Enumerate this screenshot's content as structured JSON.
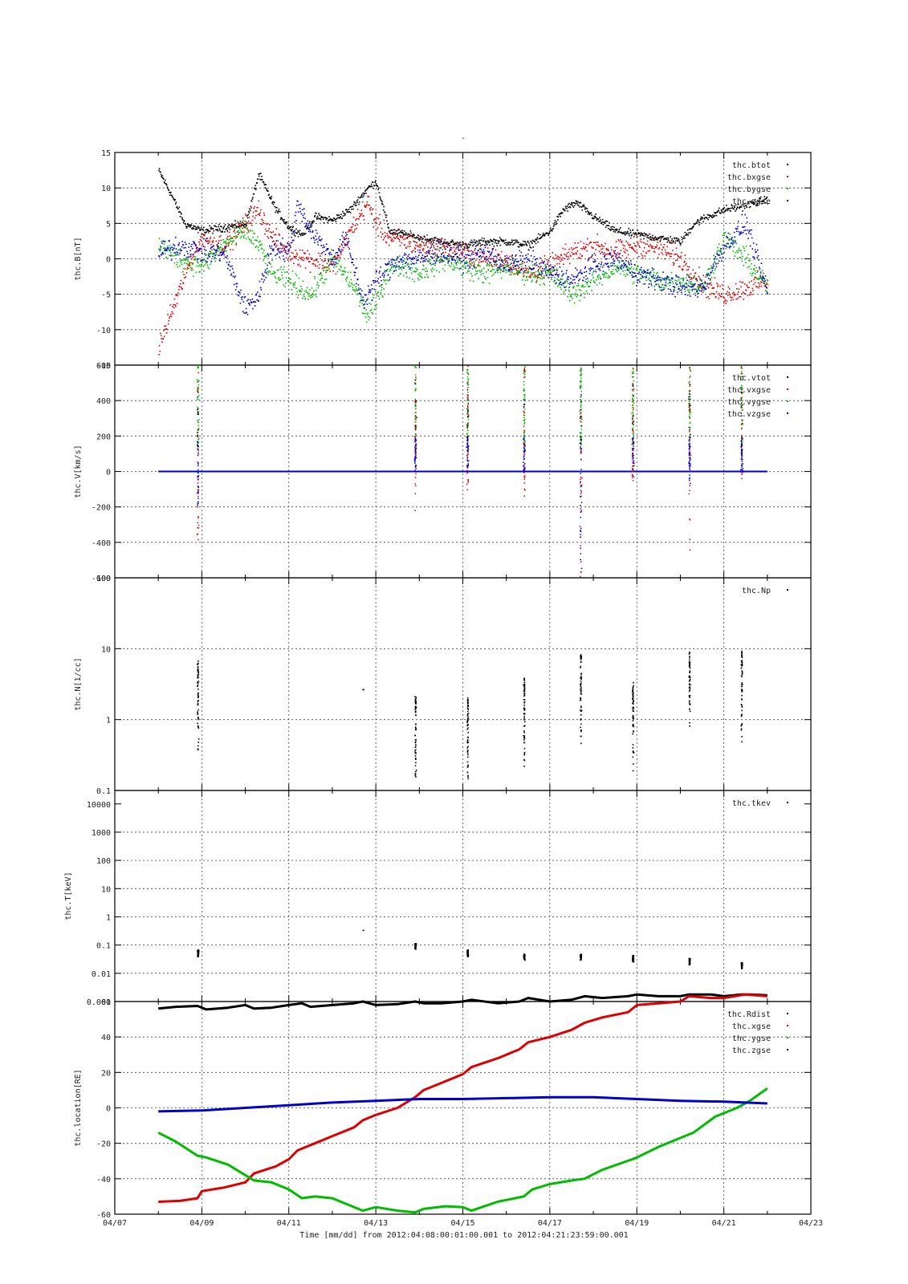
{
  "figure": {
    "top_mark": "-",
    "x_axis": {
      "tick_labels": [
        "04/07",
        "04/09",
        "04/11",
        "04/13",
        "04/15",
        "04/17",
        "04/19",
        "04/21",
        "04/23"
      ],
      "label": "Time [mm/dd]  from 2012:04:08:00:01:00.001  to  2012:04:21:23:59:00.001",
      "range": [
        "04/07",
        "04/23"
      ]
    }
  },
  "colors": {
    "black": "#000000",
    "red": "#dd0000",
    "green": "#00bb00",
    "blue": "#0000cc"
  },
  "chart_data": [
    {
      "type": "scatter",
      "ylabel": "thc.B[nT]",
      "ylim": [
        -15,
        15
      ],
      "yscale": "linear",
      "yticks": [
        -15,
        -10,
        -5,
        0,
        5,
        10,
        15
      ],
      "ytick_labels": [
        "-15",
        "-10",
        "-5",
        "0",
        "5",
        "10",
        "15"
      ],
      "grid": true,
      "legend_position": "top-right",
      "series": [
        {
          "name": "thc.btot",
          "color": "black",
          "x": [
            8.0,
            8.3,
            8.6,
            9.0,
            9.5,
            10.0,
            10.3,
            10.7,
            11.0,
            11.3,
            11.6,
            12.0,
            12.4,
            12.8,
            13.0,
            13.3,
            13.7,
            14.0,
            14.5,
            15.0,
            15.5,
            16.0,
            16.5,
            17.0,
            17.3,
            17.6,
            18.0,
            18.5,
            19.0,
            19.5,
            20.0,
            20.3,
            20.6,
            21.0,
            21.4,
            21.7,
            22.0
          ],
          "y": [
            12.5,
            9,
            5,
            4,
            4.5,
            5,
            12,
            7,
            4.5,
            3.5,
            6,
            5.5,
            7,
            10,
            11,
            4,
            3.5,
            3,
            2.5,
            2,
            2.5,
            2.5,
            2,
            4,
            7,
            8,
            6,
            4,
            3.5,
            3,
            2.5,
            5,
            6,
            7,
            7.5,
            8,
            8.5
          ]
        },
        {
          "name": "thc.bxgse",
          "color": "red",
          "x": [
            8.0,
            8.2,
            8.5,
            8.8,
            9.0,
            9.5,
            10.0,
            10.3,
            10.6,
            11.0,
            11.5,
            12.0,
            12.5,
            12.8,
            13.0,
            13.3,
            13.7,
            14.0,
            14.5,
            15.0,
            15.5,
            16.0,
            16.5,
            17.0,
            17.5,
            18.0,
            18.5,
            19.0,
            19.5,
            20.0,
            20.3,
            20.6,
            21.0,
            21.5,
            22.0
          ],
          "y": [
            -12.5,
            -9,
            -4,
            1,
            3,
            2,
            5,
            7,
            3,
            1,
            0,
            -1,
            5,
            8,
            5,
            3,
            2.5,
            2,
            1.5,
            1,
            0,
            0,
            -2,
            -1,
            1,
            2,
            1,
            2,
            1.5,
            0,
            -2,
            -4,
            -5,
            -4,
            -3
          ]
        },
        {
          "name": "thc.bygse",
          "color": "green",
          "x": [
            8.0,
            8.5,
            9.0,
            9.5,
            10.0,
            10.3,
            10.6,
            11.0,
            11.5,
            12.0,
            12.5,
            12.8,
            13.0,
            13.3,
            13.7,
            14.0,
            14.5,
            15.0,
            15.5,
            16.0,
            16.5,
            17.0,
            17.5,
            18.0,
            18.5,
            19.0,
            19.5,
            20.0,
            20.5,
            21.0,
            21.5,
            22.0
          ],
          "y": [
            2,
            0,
            -1,
            2,
            4,
            2,
            -2,
            -3,
            -5,
            0,
            -4,
            -8,
            -6,
            -1,
            -1,
            -2,
            0,
            -1,
            -2,
            -1,
            -2,
            -2,
            -5,
            -3,
            -1,
            -2,
            -3,
            -3,
            -4,
            3,
            0,
            -4
          ]
        },
        {
          "name": "thc.zgse",
          "color": "blue",
          "x": [
            8.0,
            8.5,
            9.0,
            9.5,
            9.8,
            10.0,
            10.3,
            10.6,
            11.0,
            11.2,
            11.5,
            12.0,
            12.3,
            12.7,
            13.0,
            13.5,
            14.0,
            14.5,
            15.0,
            15.5,
            16.0,
            16.5,
            17.0,
            17.5,
            18.0,
            18.5,
            19.0,
            19.5,
            20.0,
            20.5,
            21.0,
            21.5,
            22.0
          ],
          "y": [
            1,
            2,
            1,
            1,
            -4,
            -7,
            -5,
            2,
            1,
            8,
            4,
            0,
            3,
            -6,
            -3,
            0,
            0,
            1,
            0,
            1,
            -1,
            0,
            -2,
            -3,
            -1,
            0,
            -2,
            -3,
            -4,
            -4,
            2,
            5,
            -5
          ]
        }
      ]
    },
    {
      "type": "scatter",
      "ylabel": "thc.V[km/s]",
      "ylim": [
        -600,
        600
      ],
      "yscale": "linear",
      "yticks": [
        -600,
        -400,
        -200,
        0,
        200,
        400,
        600
      ],
      "ytick_labels": [
        "-600",
        "-400",
        "-200",
        "0",
        "200",
        "400",
        "600"
      ],
      "grid": true,
      "legend_position": "top-right",
      "baseline": {
        "x_start": 8.0,
        "x_end": 22.0,
        "y": 0
      },
      "bursts": [
        {
          "x": 8.9,
          "vtot_max": 600,
          "vx_min": -400,
          "vz_min": -200
        },
        {
          "x": 13.9,
          "vtot_max": 600,
          "vx_min": -250,
          "vz_min": 0
        },
        {
          "x": 15.1,
          "vtot_max": 600,
          "vx_min": -150,
          "vz_min": 0
        },
        {
          "x": 16.4,
          "vtot_max": 600,
          "vx_min": -150,
          "vz_min": 0
        },
        {
          "x": 17.7,
          "vtot_max": 600,
          "vx_min": -600,
          "vz_min": -550
        },
        {
          "x": 18.9,
          "vtot_max": 600,
          "vx_min": -50,
          "vz_min": 0
        },
        {
          "x": 20.2,
          "vtot_max": 600,
          "vx_min": -450,
          "vz_min": -80
        },
        {
          "x": 21.4,
          "vtot_max": 600,
          "vx_min": -50,
          "vz_min": 0
        }
      ],
      "series": [
        {
          "name": "thc.vtot",
          "color": "black"
        },
        {
          "name": "thc.vxgse",
          "color": "red"
        },
        {
          "name": "thc.vygse",
          "color": "green"
        },
        {
          "name": "thc.vzgse",
          "color": "blue"
        }
      ]
    },
    {
      "type": "scatter",
      "ylabel": "thc.N[1/cc]",
      "ylim": [
        0.1,
        100
      ],
      "yscale": "log",
      "yticks": [
        0.1,
        1,
        10,
        100
      ],
      "ytick_labels": [
        "0.1",
        "1",
        "10",
        "100"
      ],
      "grid": true,
      "legend_position": "top-right",
      "series": [
        {
          "name": "thc.Np",
          "color": "black",
          "bursts": [
            {
              "x": 8.9,
              "min": 0.3,
              "max": 7
            },
            {
              "x": 12.7,
              "min": 2.7,
              "max": 2.7
            },
            {
              "x": 13.9,
              "min": 0.13,
              "max": 2.2
            },
            {
              "x": 15.1,
              "min": 0.12,
              "max": 2.1
            },
            {
              "x": 16.4,
              "min": 0.2,
              "max": 4
            },
            {
              "x": 17.7,
              "min": 0.35,
              "max": 9.5
            },
            {
              "x": 18.9,
              "min": 0.15,
              "max": 3.5
            },
            {
              "x": 20.2,
              "min": 0.8,
              "max": 9.5
            },
            {
              "x": 21.4,
              "min": 0.45,
              "max": 9.5
            }
          ]
        }
      ]
    },
    {
      "type": "scatter",
      "ylabel": "thc.T[keV]",
      "ylim": [
        0.001,
        30000
      ],
      "yscale": "log",
      "yticks": [
        0.001,
        0.01,
        0.1,
        1,
        10,
        100,
        1000,
        10000
      ],
      "ytick_labels": [
        "0.001",
        "0.01",
        "0.1",
        "1",
        "10",
        "100",
        "1000",
        "10000"
      ],
      "grid": true,
      "legend_position": "top-right",
      "series": [
        {
          "name": "thc.tkev",
          "color": "black",
          "bursts": [
            {
              "x": 8.9,
              "min": 0.04,
              "max": 0.07
            },
            {
              "x": 12.7,
              "min": 0.35,
              "max": 0.35
            },
            {
              "x": 13.9,
              "min": 0.07,
              "max": 0.12
            },
            {
              "x": 15.1,
              "min": 0.04,
              "max": 0.07
            },
            {
              "x": 16.4,
              "min": 0.03,
              "max": 0.05
            },
            {
              "x": 17.7,
              "min": 0.03,
              "max": 0.05
            },
            {
              "x": 18.9,
              "min": 0.025,
              "max": 0.045
            },
            {
              "x": 20.2,
              "min": 0.02,
              "max": 0.035
            },
            {
              "x": 21.4,
              "min": 0.015,
              "max": 0.025
            }
          ]
        }
      ]
    },
    {
      "type": "line",
      "ylabel": "thc.location[RE]",
      "ylim": [
        -60,
        60
      ],
      "yscale": "linear",
      "yticks": [
        -60,
        -40,
        -20,
        0,
        20,
        40,
        60
      ],
      "ytick_labels": [
        "-60",
        "-40",
        "-20",
        "0",
        "20",
        "40",
        "60"
      ],
      "grid": true,
      "legend_position": "top-right",
      "series": [
        {
          "name": "thc.Rdist",
          "color": "black",
          "x": [
            8.0,
            8.4,
            8.9,
            9.1,
            9.6,
            10.0,
            10.2,
            10.6,
            11.0,
            11.3,
            11.5,
            12.0,
            12.5,
            12.7,
            13.0,
            13.5,
            13.9,
            14.1,
            14.5,
            15.0,
            15.2,
            15.8,
            16.3,
            16.5,
            17.0,
            17.5,
            17.8,
            18.2,
            18.8,
            19.0,
            19.5,
            20.0,
            20.2,
            20.7,
            21.0,
            21.4,
            21.6,
            22.0
          ],
          "y": [
            56,
            57,
            57.5,
            55.5,
            56.5,
            58,
            56,
            56.5,
            58,
            59,
            57,
            58,
            59,
            60,
            58,
            58.5,
            60,
            59,
            59,
            60,
            61,
            59,
            60,
            62,
            60,
            61,
            63,
            62,
            63,
            64,
            63,
            63,
            64,
            64,
            63,
            64,
            64,
            63.5
          ]
        },
        {
          "name": "thc.xgse",
          "color": "red",
          "x": [
            8.0,
            8.5,
            8.9,
            9.0,
            9.5,
            10.0,
            10.2,
            10.7,
            11.0,
            11.2,
            11.6,
            12.0,
            12.5,
            12.7,
            13.0,
            13.5,
            13.9,
            14.1,
            14.5,
            15.0,
            15.2,
            15.8,
            16.3,
            16.5,
            17.0,
            17.5,
            17.8,
            18.2,
            18.8,
            19.0,
            19.5,
            20.0,
            20.2,
            20.7,
            21.0,
            21.5,
            22.0
          ],
          "y": [
            -53,
            -52.5,
            -51,
            -47,
            -45,
            -42,
            -37,
            -33,
            -29,
            -24,
            -20,
            -16,
            -11,
            -7,
            -4,
            0,
            6,
            10,
            14,
            19,
            23,
            28,
            33,
            37,
            40,
            44,
            48,
            51,
            54,
            58,
            59,
            60,
            63,
            62,
            62,
            64,
            63
          ]
        },
        {
          "name": "thc.ygse",
          "color": "green",
          "x": [
            8.0,
            8.4,
            8.9,
            9.1,
            9.6,
            10.0,
            10.2,
            10.6,
            11.0,
            11.3,
            11.6,
            12.0,
            12.7,
            13.0,
            13.5,
            13.9,
            14.1,
            14.6,
            15.0,
            15.2,
            15.8,
            16.4,
            16.6,
            17.0,
            17.5,
            17.8,
            18.2,
            18.9,
            19.0,
            19.5,
            20.0,
            20.3,
            20.8,
            21.3,
            21.6,
            22.0
          ],
          "y": [
            -14,
            -19,
            -27,
            -28,
            -32,
            -38,
            -41,
            -42,
            -46,
            -51,
            -50,
            -51,
            -58,
            -56,
            -58,
            -59,
            -57,
            -55.5,
            -56,
            -58,
            -53,
            -50,
            -46,
            -43,
            -41,
            -40,
            -35,
            -29,
            -28,
            -22,
            -17,
            -14,
            -5,
            0,
            4,
            11
          ]
        },
        {
          "name": "thc.zgse",
          "color": "blue",
          "x": [
            8.0,
            9.0,
            10.0,
            11.0,
            12.0,
            13.0,
            14.0,
            15.0,
            16.0,
            17.0,
            18.0,
            19.0,
            20.0,
            21.0,
            22.0
          ],
          "y": [
            -2,
            -1.5,
            0,
            1.5,
            3,
            4,
            5,
            5,
            5.5,
            6,
            6,
            5,
            4,
            3.5,
            2.5
          ]
        }
      ]
    }
  ]
}
